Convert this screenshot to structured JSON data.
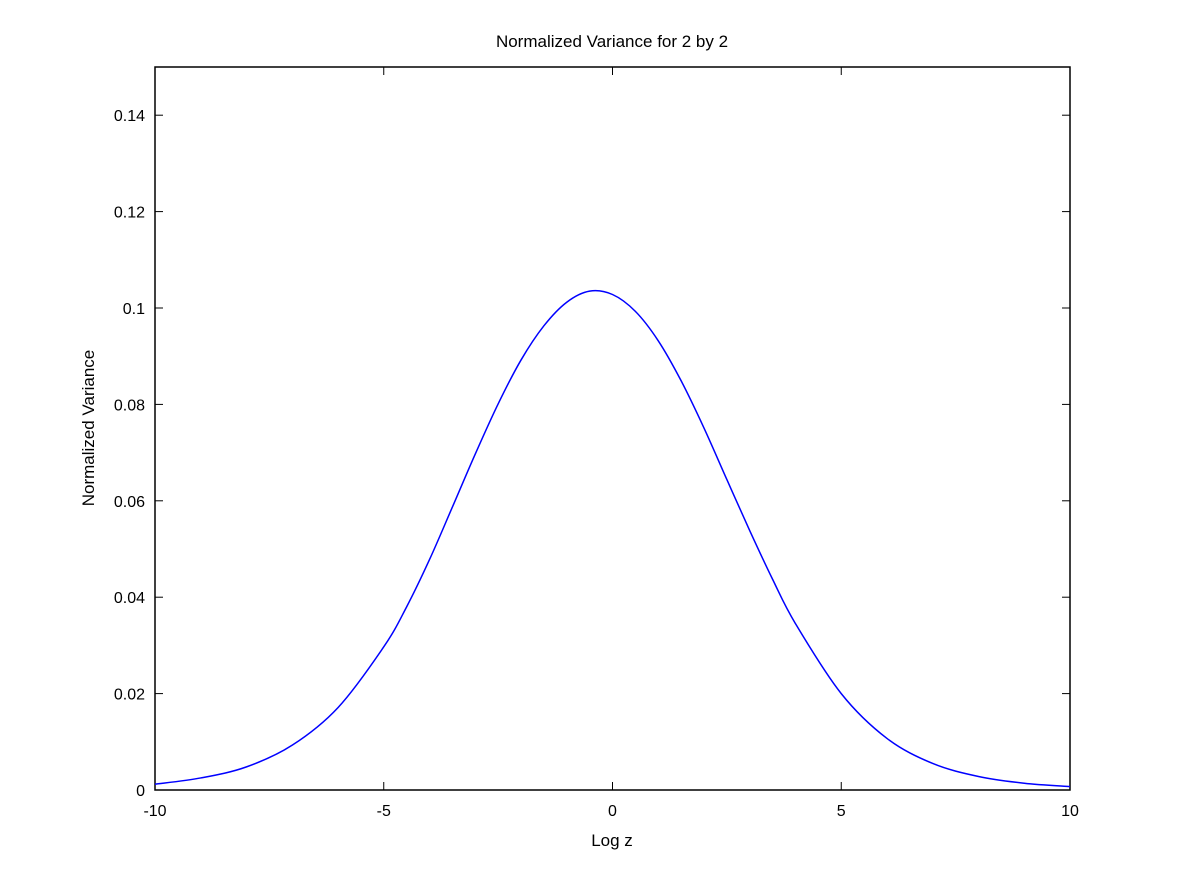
{
  "chart_data": {
    "type": "line",
    "title": "Normalized Variance for 2 by 2",
    "xlabel": "Log z",
    "ylabel": "Normalized Variance",
    "xlim": [
      -10,
      10
    ],
    "ylim": [
      0,
      0.15
    ],
    "x_ticks": [
      -10,
      -5,
      0,
      5,
      10
    ],
    "x_tick_labels": [
      "-10",
      "-5",
      "0",
      "5",
      "10"
    ],
    "y_ticks": [
      0,
      0.02,
      0.04,
      0.06,
      0.08,
      0.1,
      0.12,
      0.14
    ],
    "y_tick_labels": [
      "0",
      "0.02",
      "0.04",
      "0.06",
      "0.08",
      "0.1",
      "0.12",
      "0.14"
    ],
    "grid": false,
    "series": [
      {
        "color": "#0000ff",
        "x": [
          -10,
          -9,
          -8,
          -7,
          -6,
          -5,
          -4.5,
          -4,
          -3.5,
          -3,
          -2.5,
          -2,
          -1.5,
          -1,
          -0.5,
          0,
          0.5,
          1,
          1.5,
          2,
          2.5,
          3,
          3.5,
          4,
          5,
          6,
          7,
          8,
          9,
          10
        ],
        "y": [
          0.0012,
          0.0025,
          0.0048,
          0.0093,
          0.0171,
          0.0297,
          0.038,
          0.0478,
          0.0587,
          0.0697,
          0.0801,
          0.0892,
          0.0963,
          0.1012,
          0.1035,
          0.1028,
          0.0993,
          0.0932,
          0.0849,
          0.0751,
          0.0644,
          0.0538,
          0.0437,
          0.0345,
          0.02,
          0.0107,
          0.0055,
          0.0028,
          0.0014,
          0.0007
        ]
      }
    ]
  }
}
